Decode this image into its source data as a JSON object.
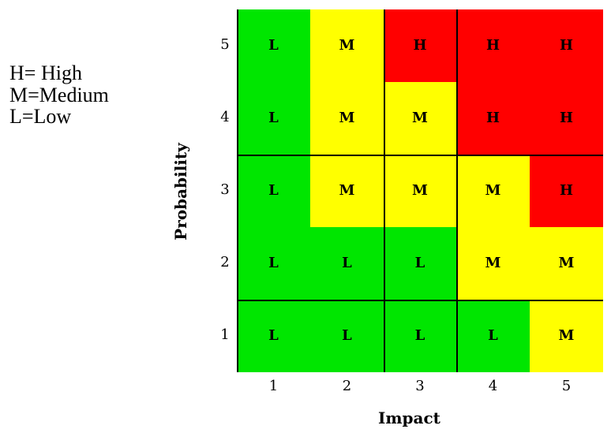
{
  "legend": {
    "items": [
      "H= High",
      "M=Medium",
      "L=Low"
    ]
  },
  "matrix": {
    "x_axis_label": "Impact",
    "y_axis_label": "Probability",
    "impact_values": [
      "1",
      "2",
      "3",
      "4",
      "5"
    ],
    "probability_values": [
      "5",
      "4",
      "3",
      "2",
      "1"
    ],
    "colors": {
      "L": "#00e600",
      "M": "#ffff00",
      "H": "#ff0000"
    },
    "rows": [
      {
        "probability": "5",
        "cells": [
          "L",
          "M",
          "H",
          "H",
          "H"
        ]
      },
      {
        "probability": "4",
        "cells": [
          "L",
          "M",
          "M",
          "H",
          "H"
        ]
      },
      {
        "probability": "3",
        "cells": [
          "L",
          "M",
          "M",
          "M",
          "H"
        ]
      },
      {
        "probability": "2",
        "cells": [
          "L",
          "L",
          "L",
          "M",
          "M"
        ]
      },
      {
        "probability": "1",
        "cells": [
          "L",
          "L",
          "L",
          "L",
          "M"
        ]
      }
    ]
  }
}
